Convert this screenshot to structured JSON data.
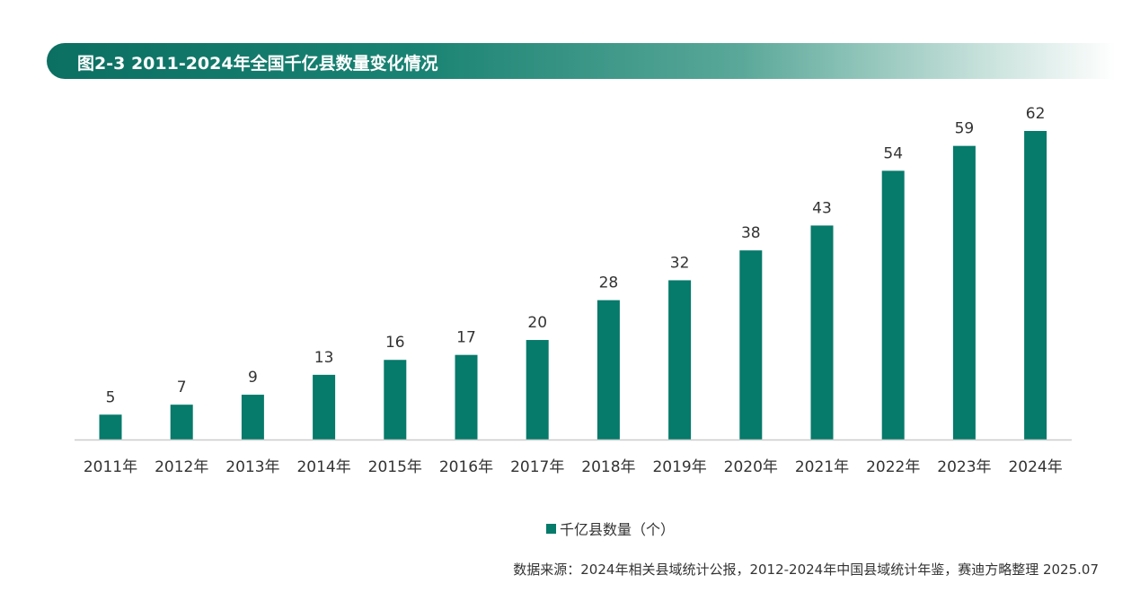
{
  "title": "图2-3 2011-2024年全国千亿县数量变化情况",
  "source": "数据来源：2024年相关县域统计公报，2012-2024年中国县域统计年鉴，赛迪方略整理 2025.07",
  "colors": {
    "bar": "#067a6b",
    "axis": "#cccccc"
  },
  "chart_data": {
    "type": "bar",
    "title": "图2-3 2011-2024年全国千亿县数量变化情况",
    "categories": [
      "2011年",
      "2012年",
      "2013年",
      "2014年",
      "2015年",
      "2016年",
      "2017年",
      "2018年",
      "2019年",
      "2020年",
      "2021年",
      "2022年",
      "2023年",
      "2024年"
    ],
    "series": [
      {
        "name": "千亿县数量（个）",
        "values": [
          5,
          7,
          9,
          13,
          16,
          17,
          20,
          28,
          32,
          38,
          43,
          54,
          59,
          62
        ]
      }
    ],
    "xlabel": "",
    "ylabel": "",
    "ylim": [
      0,
      62
    ],
    "grid": false,
    "legend": "bottom-center"
  }
}
